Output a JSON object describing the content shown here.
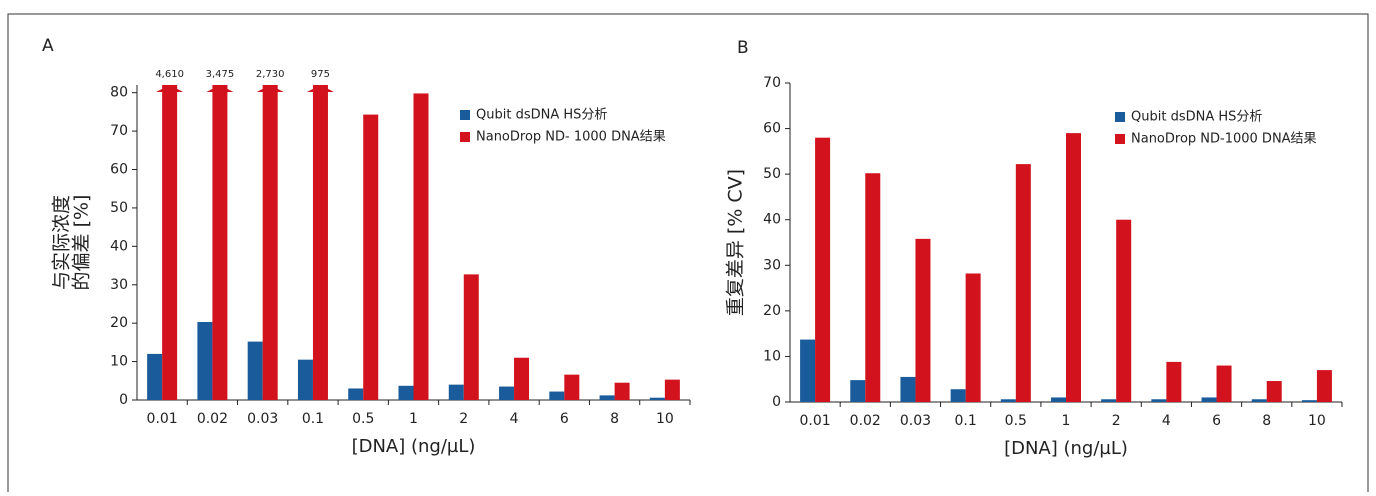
{
  "chart_data": [
    {
      "type": "bar",
      "panel": "A",
      "ylabel": [
        "与实际浓度",
        "的偏差 [%]"
      ],
      "xlabel": "[DNA] (ng/µL)",
      "categories": [
        "0.01",
        "0.02",
        "0.03",
        "0.1",
        "0.5",
        "1",
        "2",
        "4",
        "6",
        "8",
        "10"
      ],
      "series": [
        {
          "name": "Qubit dsDNA HS分析",
          "color": "#1a5c9b",
          "values": [
            12,
            20.3,
            15.2,
            10.5,
            3,
            3.7,
            4,
            3.5,
            2.2,
            1.2,
            0.6
          ]
        },
        {
          "name": "NanoDrop ND- 1000 DNA结果",
          "color": "#d2121d",
          "values": [
            4610,
            3475,
            2730,
            975,
            74.3,
            79.8,
            32.7,
            11,
            6.6,
            4.5,
            5.3
          ],
          "value_labels": [
            "4,610",
            "3,475",
            "2,730",
            "975",
            null,
            null,
            null,
            null,
            null,
            null,
            null
          ]
        }
      ],
      "ylim": [
        0,
        82
      ],
      "yticks": [
        0,
        10,
        20,
        30,
        40,
        50,
        60,
        70,
        80
      ]
    },
    {
      "type": "bar",
      "panel": "B",
      "ylabel": [
        "重复差异 [% CV]"
      ],
      "xlabel": "[DNA] (ng/µL)",
      "categories": [
        "0.01",
        "0.02",
        "0.03",
        "0.1",
        "0.5",
        "1",
        "2",
        "4",
        "6",
        "8",
        "10"
      ],
      "series": [
        {
          "name": "Qubit dsDNA HS分析",
          "color": "#1a5c9b",
          "values": [
            13.7,
            4.8,
            5.5,
            2.8,
            0.6,
            1.0,
            0.6,
            0.6,
            1.0,
            0.6,
            0.4
          ]
        },
        {
          "name": "NanoDrop ND-1000 DNA结果",
          "color": "#d2121d",
          "values": [
            58,
            50.2,
            35.8,
            28.2,
            52.2,
            59,
            40,
            8.8,
            8,
            4.6,
            7
          ]
        }
      ],
      "ylim": [
        0,
        70
      ],
      "yticks": [
        0,
        10,
        20,
        30,
        40,
        50,
        60,
        70
      ]
    }
  ]
}
